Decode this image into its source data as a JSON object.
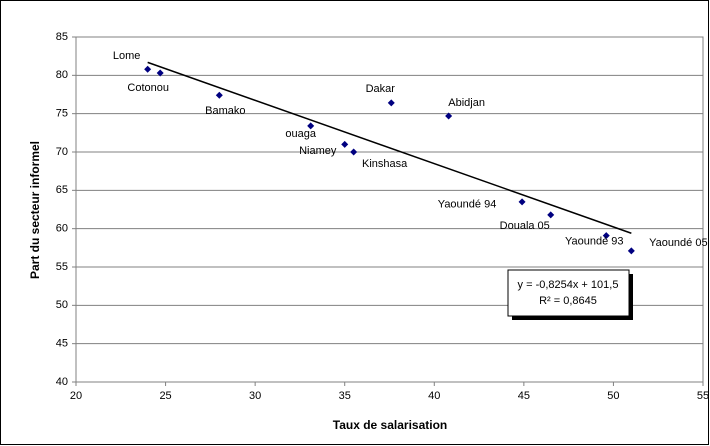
{
  "chart_data": {
    "type": "scatter",
    "x_label": "Taux de salarisation",
    "y_label": "Part du secteur informel",
    "color": "#000080",
    "points": [
      {
        "label": "Lome",
        "x": 24.0,
        "y": 80.8
      },
      {
        "label": "Cotonou",
        "x": 24.7,
        "y": 80.3
      },
      {
        "label": "Bamako",
        "x": 28.0,
        "y": 77.4
      },
      {
        "label": "Dakar",
        "x": 37.6,
        "y": 76.4
      },
      {
        "label": "Abidjan",
        "x": 40.8,
        "y": 74.7
      },
      {
        "label": "ouaga",
        "x": 33.1,
        "y": 73.4
      },
      {
        "label": "Niamey",
        "x": 35.0,
        "y": 71.0
      },
      {
        "label": "Kinshasa",
        "x": 35.5,
        "y": 70.0
      },
      {
        "label": "Yaoundé 94",
        "x": 44.9,
        "y": 63.5
      },
      {
        "label": "Douala 05",
        "x": 46.5,
        "y": 61.8
      },
      {
        "label": "Yaoundé 93",
        "x": 49.6,
        "y": 59.1
      },
      {
        "label": "Yaoundé 05",
        "x": 51.0,
        "y": 57.1
      }
    ],
    "trendline": {
      "slope": -0.8254,
      "intercept": 101.5,
      "equation": "y = -0,8254x + 101,5",
      "r2": "R² = 0,8645"
    },
    "xlim": [
      20,
      55
    ],
    "xticks": [
      20,
      25,
      30,
      35,
      40,
      45,
      50,
      55
    ],
    "ylim": [
      40,
      85
    ],
    "yticks": [
      40,
      45,
      50,
      55,
      60,
      65,
      70,
      75,
      80,
      85
    ],
    "grid": true
  }
}
